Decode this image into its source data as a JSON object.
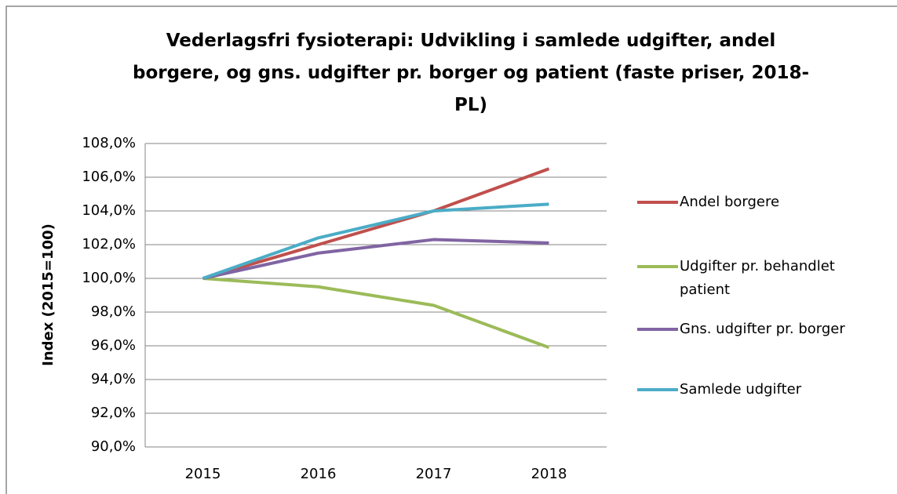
{
  "chart_data": {
    "type": "line",
    "title": "Vederlagsfri fysioterapi: Udvikling i samlede udgifter, andel borgere, og gns. udgifter pr. borger og patient (faste priser, 2018-PL)",
    "y_label": "Index (2015=100)",
    "categories": [
      "2015",
      "2016",
      "2017",
      "2018"
    ],
    "series": [
      {
        "name": "Andel borgere",
        "color": "#c0504d",
        "values": [
          100,
          102.0,
          104.0,
          106.5
        ]
      },
      {
        "name": "Udgifter pr. behandlet patient",
        "color": "#9bbb59",
        "values": [
          100,
          99.5,
          98.4,
          95.9
        ]
      },
      {
        "name": "Gns. udgifter pr. borger",
        "color": "#8064a2",
        "values": [
          100,
          101.5,
          102.3,
          102.1
        ]
      },
      {
        "name": "Samlede udgifter",
        "color": "#4bacc6",
        "values": [
          100,
          102.4,
          104.0,
          104.4
        ]
      }
    ],
    "ylim": [
      90,
      108
    ],
    "yticks": [
      {
        "value": 90,
        "label": "90,0%"
      },
      {
        "value": 92,
        "label": "92,0%"
      },
      {
        "value": 94,
        "label": "94,0%"
      },
      {
        "value": 96,
        "label": "96,0%"
      },
      {
        "value": 98,
        "label": "98,0%"
      },
      {
        "value": 100,
        "label": "100,0%"
      },
      {
        "value": 102,
        "label": "102,0%"
      },
      {
        "value": 104,
        "label": "104,0%"
      },
      {
        "value": 106,
        "label": "106,0%"
      },
      {
        "value": 108,
        "label": "108,0%"
      }
    ],
    "grid": true,
    "legend": "right"
  }
}
